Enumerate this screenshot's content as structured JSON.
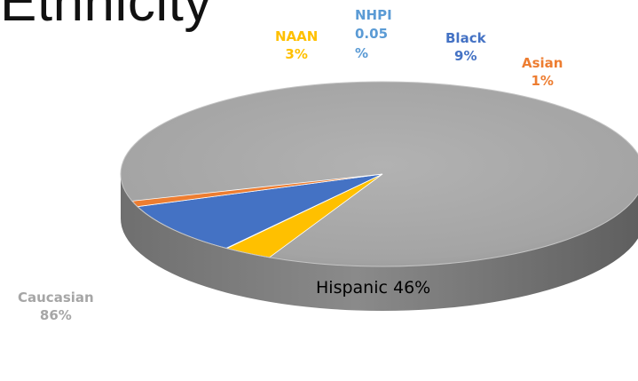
{
  "chart_data": {
    "type": "pie",
    "title": "Ethnicity",
    "slices": [
      {
        "name": "Caucasian",
        "label": "86%",
        "value": 86.0,
        "color": "#a6a6a6"
      },
      {
        "name": "NAAN",
        "label": "3%",
        "value": 3.0,
        "color": "#ffc000"
      },
      {
        "name": "NHPI",
        "label": "0.05 %",
        "value": 0.05,
        "color": "#5b9bd5"
      },
      {
        "name": "Black",
        "label": "9%",
        "value": 9.0,
        "color": "#4472c4"
      },
      {
        "name": "Asian",
        "label": "1%",
        "value": 1.0,
        "color": "#ed7d31"
      }
    ],
    "annotations": [
      "Hispanic 46%"
    ]
  }
}
